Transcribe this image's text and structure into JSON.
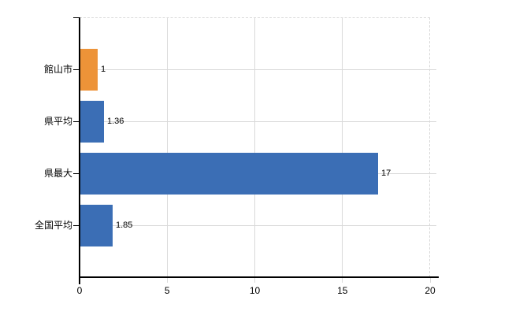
{
  "chart_data": {
    "type": "bar",
    "orientation": "horizontal",
    "categories": [
      "館山市",
      "県平均",
      "県最大",
      "全国平均"
    ],
    "values": [
      1,
      1.36,
      17,
      1.85
    ],
    "value_labels": [
      "1",
      "1.36",
      "17",
      "1.85"
    ],
    "bar_colors": [
      "#ed9338",
      "#3b6eb5",
      "#3b6eb5",
      "#3b6eb5"
    ],
    "xlim": [
      0,
      20
    ],
    "x_ticks": [
      0,
      5,
      10,
      15,
      20
    ],
    "x_tick_labels": [
      "0",
      "5",
      "10",
      "15",
      "20"
    ],
    "grid": "on",
    "legend_position": "none"
  },
  "colors": {
    "bar_primary": "#3b6eb5",
    "bar_highlight": "#ed9338",
    "gridline": "#d9d9d9",
    "axis": "#000000",
    "text": "#000000",
    "background": "#ffffff"
  }
}
